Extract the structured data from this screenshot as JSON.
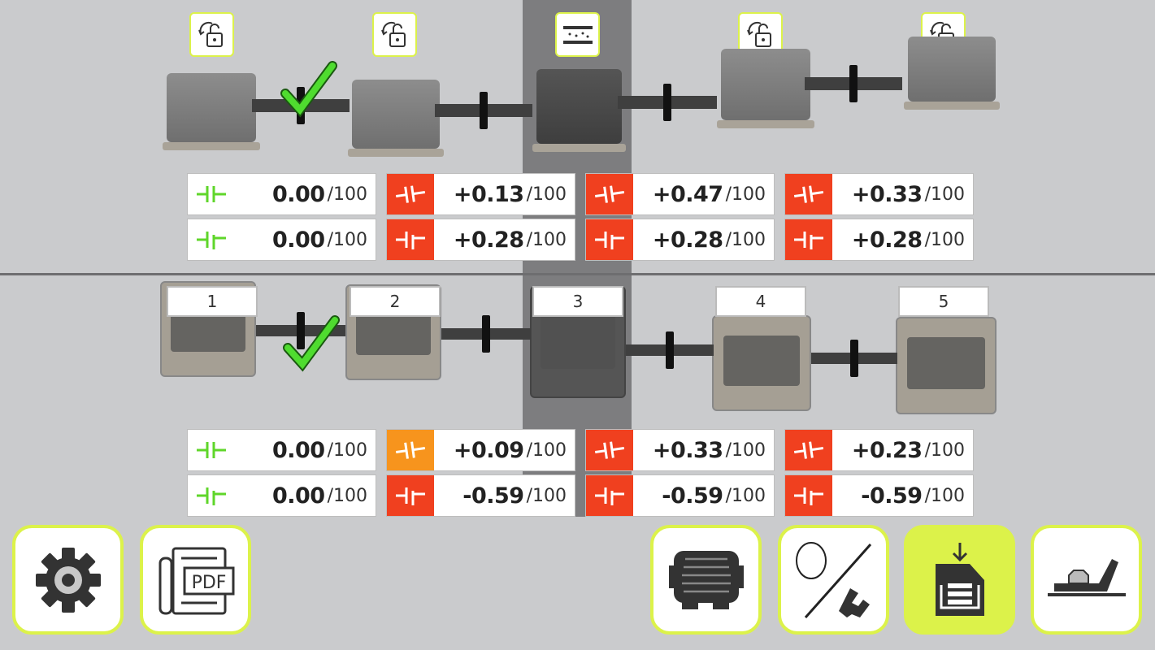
{
  "colors": {
    "accent": "#dcf24a",
    "ok": "#5fd62a",
    "bad": "#f0401f",
    "warn": "#f7941d",
    "highlight_column": "#7d7d7f"
  },
  "top": {
    "lock_icons": [
      "unlock-rotate-icon",
      "unlock-rotate-icon",
      "tolerance-icon",
      "unlock-rotate-icon",
      "unlock-rotate-icon"
    ],
    "rows": [
      [
        {
          "status": "ok",
          "value": "0.00",
          "tol": "/100"
        },
        {
          "status": "bad",
          "value": "+0.13",
          "tol": "/100"
        },
        {
          "status": "bad",
          "value": "+0.47",
          "tol": "/100"
        },
        {
          "status": "bad",
          "value": "+0.33",
          "tol": "/100"
        }
      ],
      [
        {
          "status": "ok",
          "value": "0.00",
          "tol": "/100"
        },
        {
          "status": "bad",
          "value": "+0.28",
          "tol": "/100"
        },
        {
          "status": "bad",
          "value": "+0.28",
          "tol": "/100"
        },
        {
          "status": "bad",
          "value": "+0.28",
          "tol": "/100"
        }
      ]
    ]
  },
  "bottom": {
    "machine_labels": [
      "1",
      "2",
      "3",
      "4",
      "5"
    ],
    "rows": [
      [
        {
          "status": "ok",
          "value": "0.00",
          "tol": "/100"
        },
        {
          "status": "warn",
          "value": "+0.09",
          "tol": "/100"
        },
        {
          "status": "bad",
          "value": "+0.33",
          "tol": "/100"
        },
        {
          "status": "bad",
          "value": "+0.23",
          "tol": "/100"
        }
      ],
      [
        {
          "status": "ok",
          "value": "0.00",
          "tol": "/100"
        },
        {
          "status": "bad",
          "value": "-0.59",
          "tol": "/100"
        },
        {
          "status": "bad",
          "value": "-0.59",
          "tol": "/100"
        },
        {
          "status": "bad",
          "value": "-0.59",
          "tol": "/100"
        }
      ]
    ]
  },
  "toolbar": {
    "pdf_label": "PDF",
    "buttons": [
      "settings",
      "pdf-report",
      "machine",
      "rotation-shim",
      "save",
      "foot"
    ],
    "active": "save"
  }
}
